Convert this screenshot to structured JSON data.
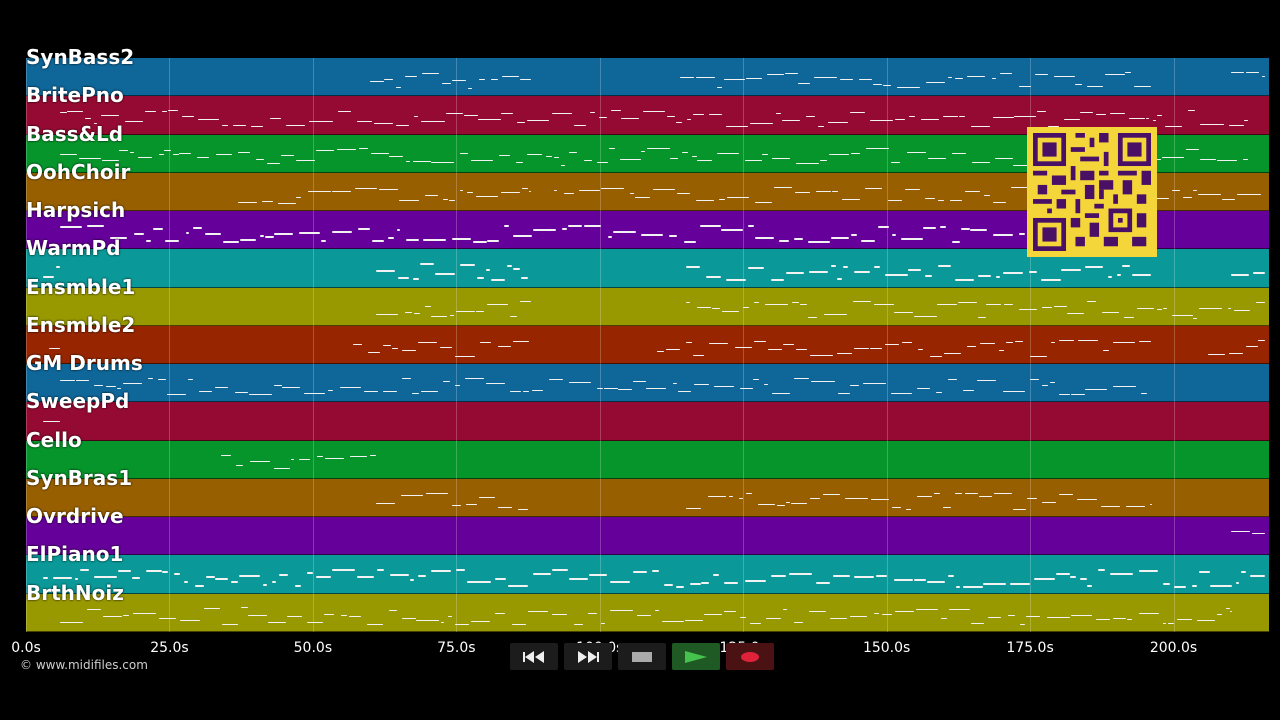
{
  "tracks": [
    {
      "name": "SynBass2",
      "color": "#0e6699"
    },
    {
      "name": "BritePno",
      "color": "#950a32"
    },
    {
      "name": "Bass&Ld",
      "color": "#05952a"
    },
    {
      "name": "OohChoir",
      "color": "#975f00"
    },
    {
      "name": "Harpsich",
      "color": "#65009a"
    },
    {
      "name": "WarmPd",
      "color": "#0a9898"
    },
    {
      "name": "Ensmble1",
      "color": "#989800"
    },
    {
      "name": "Ensmble2",
      "color": "#972600"
    },
    {
      "name": "GM Drums",
      "color": "#0e6699"
    },
    {
      "name": "SweepPd",
      "color": "#950a32"
    },
    {
      "name": "Cello",
      "color": "#05952a"
    },
    {
      "name": "SynBras1",
      "color": "#975f00"
    },
    {
      "name": "Ovrdrive",
      "color": "#65009a"
    },
    {
      "name": "ElPiano1",
      "color": "#0a9898"
    },
    {
      "name": "BrthNoiz",
      "color": "#989800"
    }
  ],
  "timeline": {
    "ticks": [
      "0.0s",
      "25.0s",
      "50.0s",
      "75.0s",
      "100.0s",
      "125.0s",
      "150.0s",
      "175.0s",
      "200.0s"
    ],
    "seconds_per_tick": 25,
    "max_seconds": 216.5
  },
  "copyright": "© www.midifiles.com",
  "transport": {
    "rewind_icon": "rewind-icon",
    "forward_icon": "fast-forward-icon",
    "stop_icon": "stop-icon",
    "play_icon": "play-icon",
    "record_icon": "record-icon"
  },
  "qr_icon": "qr-code-icon"
}
